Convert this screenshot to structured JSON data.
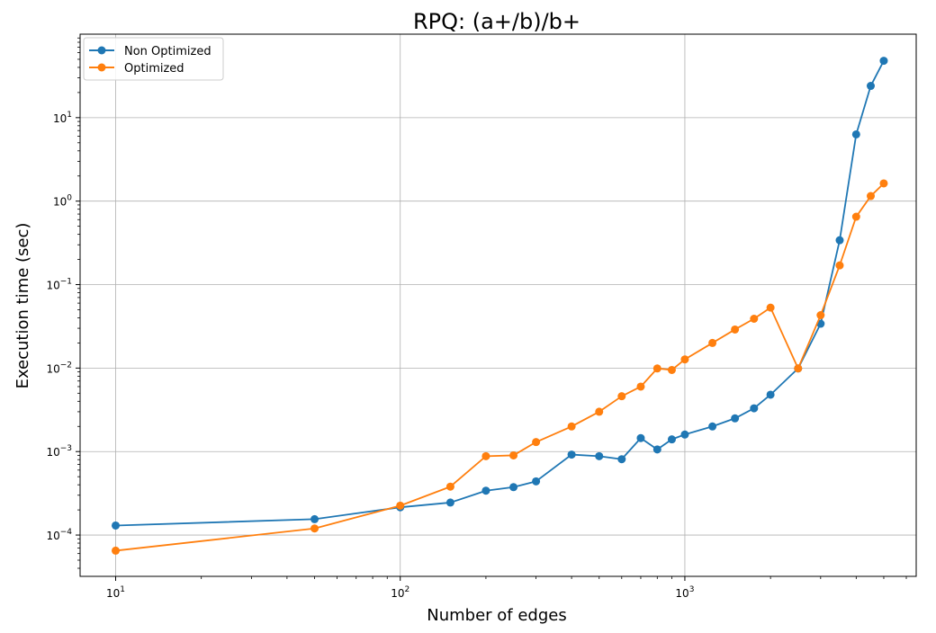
{
  "chart_data": {
    "type": "line",
    "title": "RPQ: (a+/b)/b+",
    "xlabel": "Number of edges",
    "ylabel": "Execution time (sec)",
    "xscale": "log",
    "yscale": "log",
    "xlim": [
      7.5,
      6500
    ],
    "ylim": [
      3.2e-05,
      100
    ],
    "grid": true,
    "legend_position": "top-left",
    "x_ticks": [
      {
        "value": 10,
        "base": "10",
        "exp": "1"
      },
      {
        "value": 100,
        "base": "10",
        "exp": "2"
      },
      {
        "value": 1000,
        "base": "10",
        "exp": "3"
      }
    ],
    "y_ticks": [
      {
        "value": 0.0001,
        "base": "10",
        "exp": "−4"
      },
      {
        "value": 0.001,
        "base": "10",
        "exp": "−3"
      },
      {
        "value": 0.01,
        "base": "10",
        "exp": "−2"
      },
      {
        "value": 0.1,
        "base": "10",
        "exp": "−1"
      },
      {
        "value": 1,
        "base": "10",
        "exp": "0"
      },
      {
        "value": 10,
        "base": "10",
        "exp": "1"
      }
    ],
    "series": [
      {
        "name": "Non Optimized",
        "color": "#1f77b4",
        "x": [
          10,
          50,
          100,
          150,
          200,
          250,
          300,
          400,
          500,
          600,
          700,
          800,
          900,
          1000,
          1250,
          1500,
          1750,
          2000,
          2500,
          3000,
          3500,
          4000,
          4500,
          5000
        ],
        "y": [
          0.00013,
          0.000155,
          0.000215,
          0.000245,
          0.00034,
          0.000375,
          0.00044,
          0.00092,
          0.00088,
          0.00081,
          0.00145,
          0.00106,
          0.0014,
          0.0016,
          0.002,
          0.0025,
          0.0033,
          0.0048,
          0.0099,
          0.034,
          0.34,
          6.3,
          24,
          48
        ]
      },
      {
        "name": "Optimized",
        "color": "#ff7f0e",
        "x": [
          10,
          50,
          100,
          150,
          200,
          250,
          300,
          400,
          500,
          600,
          700,
          800,
          900,
          1000,
          1250,
          1500,
          1750,
          2000,
          2500,
          3000,
          3500,
          4000,
          4500,
          5000
        ],
        "y": [
          6.5e-05,
          0.00012,
          0.000225,
          0.00038,
          0.00088,
          0.0009,
          0.0013,
          0.002,
          0.003,
          0.0046,
          0.006,
          0.0099,
          0.0095,
          0.0127,
          0.02,
          0.029,
          0.039,
          0.053,
          0.0099,
          0.043,
          0.17,
          0.65,
          1.15,
          1.63
        ]
      }
    ]
  }
}
